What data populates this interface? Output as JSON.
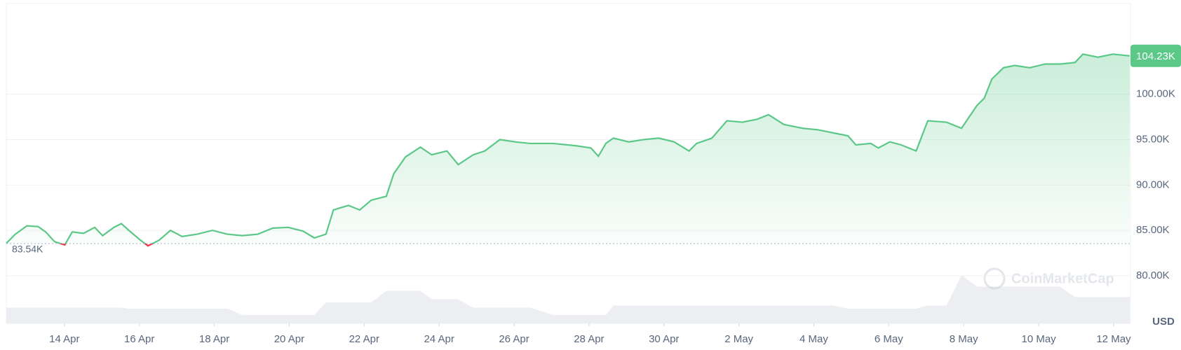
{
  "chart_data": {
    "type": "line",
    "x": [
      12.45,
      12.69,
      13.0,
      13.3,
      13.5,
      13.74,
      14.01,
      14.21,
      14.51,
      14.81,
      15.02,
      15.32,
      15.52,
      15.72,
      16.03,
      16.23,
      16.53,
      16.83,
      17.14,
      17.54,
      17.95,
      18.35,
      18.75,
      19.16,
      19.56,
      19.97,
      20.37,
      20.67,
      20.98,
      21.18,
      21.58,
      21.88,
      22.19,
      22.59,
      22.79,
      23.1,
      23.5,
      23.8,
      24.21,
      24.51,
      24.91,
      25.22,
      25.62,
      26.03,
      26.43,
      27.04,
      27.64,
      28.05,
      28.25,
      28.45,
      28.65,
      29.06,
      29.46,
      29.86,
      30.27,
      30.67,
      30.87,
      31.28,
      31.68,
      32.09,
      32.49,
      32.79,
      33.2,
      33.7,
      34.11,
      34.51,
      34.91,
      35.12,
      35.52,
      35.72,
      36.03,
      36.33,
      36.73,
      37.04,
      37.54,
      37.94,
      38.35,
      38.55,
      38.75,
      39.06,
      39.36,
      39.76,
      40.17,
      40.57,
      40.97,
      41.18,
      41.58,
      41.98,
      42.43
    ],
    "series": [
      {
        "color": "#5bc887",
        "below_color": "#ea3943",
        "values": [
          83580,
          84580,
          85500,
          85420,
          84830,
          83750,
          83400,
          84830,
          84670,
          85330,
          84420,
          85330,
          85750,
          85000,
          83920,
          83300,
          83920,
          85000,
          84330,
          84580,
          85000,
          84580,
          84420,
          84580,
          85250,
          85330,
          84920,
          84170,
          84580,
          87250,
          87750,
          87250,
          88330,
          88750,
          91250,
          93080,
          94170,
          93330,
          93750,
          92250,
          93330,
          93750,
          95000,
          94750,
          94580,
          94580,
          94330,
          94080,
          93170,
          94580,
          95170,
          94750,
          95000,
          95170,
          94750,
          93750,
          94580,
          95170,
          97080,
          96920,
          97250,
          97750,
          96670,
          96250,
          96080,
          95750,
          95420,
          94420,
          94580,
          94080,
          94750,
          94420,
          93750,
          97080,
          96920,
          96250,
          98750,
          99580,
          101670,
          102920,
          103170,
          102920,
          103330,
          103330,
          103500,
          104420,
          104080,
          104420,
          104230
        ]
      }
    ],
    "volume": {
      "color": "#eceef2",
      "lim": [
        0,
        100
      ],
      "values": [
        30,
        30,
        30,
        30,
        30,
        30,
        30,
        30,
        30,
        30,
        30,
        30,
        30,
        28,
        28,
        28,
        28,
        28,
        28,
        28,
        28,
        28,
        16,
        16,
        16,
        16,
        16,
        16,
        40,
        40,
        40,
        40,
        40,
        62,
        62,
        62,
        62,
        46,
        46,
        46,
        30,
        30,
        30,
        30,
        30,
        16,
        16,
        16,
        16,
        16,
        34,
        34,
        34,
        34,
        34,
        34,
        34,
        34,
        34,
        34,
        34,
        34,
        34,
        34,
        34,
        34,
        28,
        28,
        28,
        28,
        28,
        28,
        28,
        34,
        34,
        92,
        70,
        70,
        70,
        70,
        70,
        70,
        70,
        70,
        50,
        50,
        50,
        50,
        50
      ]
    },
    "xlim": [
      12.45,
      42.45
    ],
    "xticks": [
      {
        "value": 14,
        "label": "14 Apr"
      },
      {
        "value": 16,
        "label": "16 Apr"
      },
      {
        "value": 18,
        "label": "18 Apr"
      },
      {
        "value": 20,
        "label": "20 Apr"
      },
      {
        "value": 22,
        "label": "22 Apr"
      },
      {
        "value": 24,
        "label": "24 Apr"
      },
      {
        "value": 26,
        "label": "26 Apr"
      },
      {
        "value": 28,
        "label": "28 Apr"
      },
      {
        "value": 30,
        "label": "30 Apr"
      },
      {
        "value": 32,
        "label": "2 May"
      },
      {
        "value": 34,
        "label": "4 May"
      },
      {
        "value": 36,
        "label": "6 May"
      },
      {
        "value": 38,
        "label": "8 May"
      },
      {
        "value": 40,
        "label": "10 May"
      },
      {
        "value": 42,
        "label": "12 May"
      }
    ],
    "ylim": [
      74750,
      110000
    ],
    "yticks": [
      {
        "value": 80000,
        "label": "80.00K"
      },
      {
        "value": 85000,
        "label": "85.00K"
      },
      {
        "value": 90000,
        "label": "90.00K"
      },
      {
        "value": 95000,
        "label": "95.00K"
      },
      {
        "value": 100000,
        "label": "100.00K"
      }
    ],
    "grid": true,
    "baseline": {
      "value": 83540,
      "label": "83.54K"
    },
    "last": {
      "value": 104230,
      "label": "104.23K"
    },
    "currency": "USD",
    "watermark": "CoinMarketCap"
  }
}
